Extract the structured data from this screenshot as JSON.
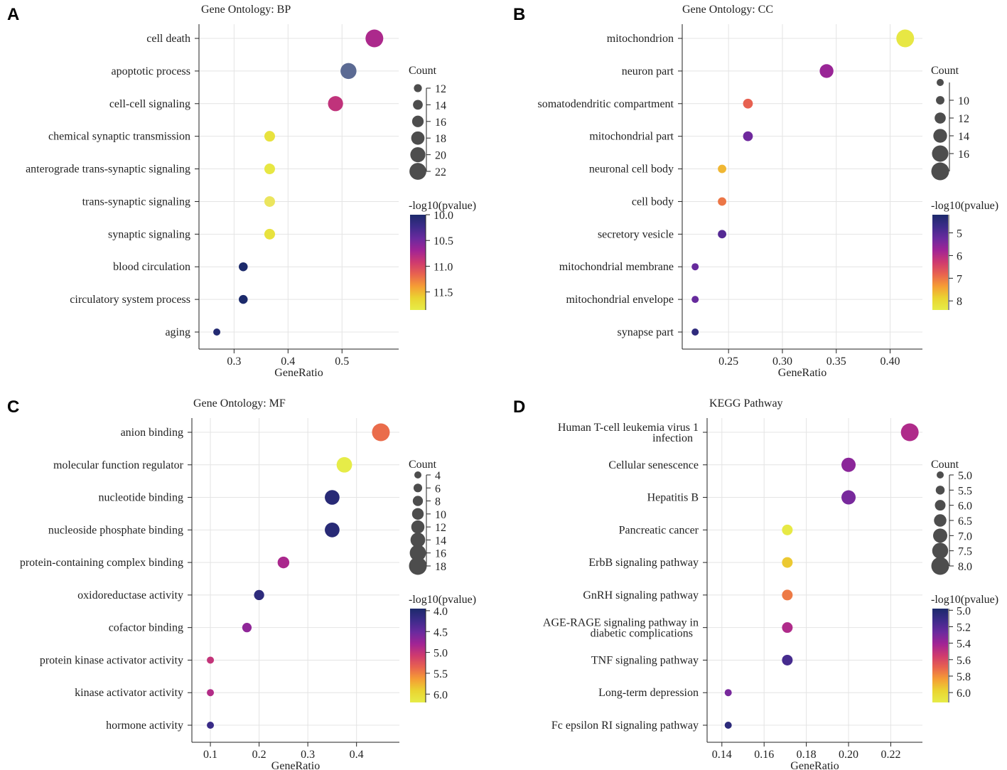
{
  "chart_data": [
    {
      "panel": "A",
      "type": "scatter",
      "title": "Gene Ontology: BP",
      "xlabel": "GeneRatio",
      "xlim": [
        0.235,
        0.605
      ],
      "xticks": [
        0.3,
        0.4,
        0.5
      ],
      "xtick_labels": [
        "0.3",
        "0.4",
        "0.5"
      ],
      "categories": [
        "cell death",
        "apoptotic process",
        "cell-cell signaling",
        "chemical synaptic transmission",
        "anterograde trans-synaptic signaling",
        "trans-synaptic signaling",
        "synaptic signaling",
        "blood circulation",
        "circulatory system process",
        "aging"
      ],
      "gene_ratio": [
        0.56,
        0.512,
        0.488,
        0.366,
        0.366,
        0.366,
        0.366,
        0.317,
        0.317,
        0.268
      ],
      "count": [
        23,
        21,
        20,
        15,
        15,
        15,
        15,
        13,
        13,
        11
      ],
      "neg_log10_pvalue": [
        10.75,
        10.2,
        10.85,
        11.75,
        11.8,
        11.7,
        11.75,
        10.0,
        10.0,
        10.05
      ],
      "size_legend": {
        "title": "Count",
        "values": [
          12,
          14,
          16,
          18,
          20,
          22
        ],
        "labels": [
          "12",
          "14",
          "16",
          "18",
          "20",
          "22"
        ]
      },
      "color_legend": {
        "title": "-log10(pvalue)",
        "min": 10.0,
        "max": 11.85,
        "ticks": [
          10.0,
          10.5,
          11.0,
          11.5
        ],
        "labels": [
          "10.0",
          "10.5",
          "11.0",
          "11.5"
        ]
      }
    },
    {
      "panel": "B",
      "type": "scatter",
      "title": "Gene Ontology: CC",
      "xlabel": "GeneRatio",
      "xlim": [
        0.207,
        0.43
      ],
      "xticks": [
        0.25,
        0.3,
        0.35,
        0.4
      ],
      "xtick_labels": [
        "0.25",
        "0.30",
        "0.35",
        "0.40"
      ],
      "categories": [
        "mitochondrion",
        "neuron part",
        "somatodendritic compartment",
        "mitochondrial part",
        "neuronal cell body",
        "cell body",
        "secretory vesicle",
        "mitochondrial membrane",
        "mitochondrial envelope",
        "synapse part"
      ],
      "gene_ratio": [
        0.414,
        0.341,
        0.268,
        0.268,
        0.244,
        0.244,
        0.244,
        0.219,
        0.219,
        0.219
      ],
      "count": [
        17,
        14,
        11,
        11,
        10,
        10,
        10,
        9,
        9,
        9
      ],
      "neg_log10_pvalue": [
        8.3,
        5.7,
        6.8,
        5.3,
        7.6,
        7.0,
        5.0,
        5.2,
        5.2,
        4.5
      ],
      "size_legend": {
        "title": "Count",
        "values": [
          9,
          10,
          12,
          14,
          16,
          17
        ],
        "labels": [
          "",
          "10",
          "12",
          "14",
          "16",
          ""
        ]
      },
      "color_legend": {
        "title": "-log10(pvalue)",
        "min": 4.2,
        "max": 8.4,
        "ticks": [
          5,
          6,
          7,
          8
        ],
        "labels": [
          "5",
          "6",
          "7",
          "8"
        ]
      }
    },
    {
      "panel": "C",
      "type": "scatter",
      "title": "Gene Ontology: MF",
      "xlabel": "GeneRatio",
      "xlim": [
        0.062,
        0.488
      ],
      "xticks": [
        0.1,
        0.2,
        0.3,
        0.4
      ],
      "xtick_labels": [
        "0.1",
        "0.2",
        "0.3",
        "0.4"
      ],
      "categories": [
        "anion binding",
        "molecular function regulator",
        "nucleotide binding",
        "nucleoside phosphate binding",
        "protein-containing complex binding",
        "oxidoreductase activity",
        "cofactor binding",
        "protein kinase activator activity",
        "kinase activator activity",
        "hormone activity"
      ],
      "gene_ratio": [
        0.45,
        0.375,
        0.35,
        0.35,
        0.25,
        0.2,
        0.175,
        0.1,
        0.1,
        0.1
      ],
      "count": [
        18,
        15,
        14,
        14,
        10,
        8,
        7,
        4,
        4,
        4
      ],
      "neg_log10_pvalue": [
        5.4,
        6.2,
        4.05,
        4.05,
        4.85,
        4.1,
        4.7,
        5.0,
        4.9,
        4.2
      ],
      "size_legend": {
        "title": "Count",
        "values": [
          4,
          6,
          8,
          10,
          12,
          14,
          16,
          18
        ],
        "labels": [
          "4",
          "6",
          "8",
          "10",
          "12",
          "14",
          "16",
          "18"
        ]
      },
      "color_legend": {
        "title": "-log10(pvalue)",
        "min": 3.95,
        "max": 6.2,
        "ticks": [
          4.0,
          4.5,
          5.0,
          5.5,
          6.0
        ],
        "labels": [
          "4.0",
          "4.5",
          "5.0",
          "5.5",
          "6.0"
        ]
      }
    },
    {
      "panel": "D",
      "type": "scatter",
      "title": "KEGG Pathway",
      "xlabel": "GeneRatio",
      "xlim": [
        0.133,
        0.235
      ],
      "xticks": [
        0.14,
        0.16,
        0.18,
        0.2,
        0.22
      ],
      "xtick_labels": [
        "0.14",
        "0.16",
        "0.18",
        "0.20",
        "0.22"
      ],
      "categories": [
        "Human T-cell leukemia virus 1 infection",
        "Cellular senescence",
        "Hepatitis B",
        "Pancreatic cancer",
        "ErbB signaling pathway",
        "GnRH signaling pathway",
        "AGE-RAGE signaling pathway in diabetic complications",
        "TNF signaling pathway",
        "Long-term depression",
        "Fc epsilon RI signaling pathway"
      ],
      "category_lines": [
        [
          "Human T-cell leukemia virus 1",
          "infection"
        ],
        [
          "Cellular senescence"
        ],
        [
          "Hepatitis B"
        ],
        [
          "Pancreatic cancer"
        ],
        [
          "ErbB signaling pathway"
        ],
        [
          "GnRH signaling pathway"
        ],
        [
          "AGE-RAGE signaling pathway in",
          "diabetic complications"
        ],
        [
          "TNF signaling pathway"
        ],
        [
          "Long-term depression"
        ],
        [
          "Fc epsilon RI signaling pathway"
        ]
      ],
      "gene_ratio": [
        0.229,
        0.2,
        0.2,
        0.171,
        0.171,
        0.171,
        0.171,
        0.171,
        0.143,
        0.143
      ],
      "count": [
        8,
        7,
        7,
        6,
        6,
        6,
        6,
        6,
        5,
        5
      ],
      "neg_log10_pvalue": [
        5.45,
        5.35,
        5.3,
        6.1,
        5.95,
        5.75,
        5.45,
        5.15,
        5.3,
        5.05
      ],
      "size_legend": {
        "title": "Count",
        "values": [
          5.0,
          5.5,
          6.0,
          6.5,
          7.0,
          7.5,
          8.0
        ],
        "labels": [
          "5.0",
          "5.5",
          "6.0",
          "6.5",
          "7.0",
          "7.5",
          "8.0"
        ]
      },
      "color_legend": {
        "title": "-log10(pvalue)",
        "min": 4.98,
        "max": 6.12,
        "ticks": [
          5.0,
          5.2,
          5.4,
          5.6,
          5.8,
          6.0
        ],
        "labels": [
          "5.0",
          "5.2",
          "5.4",
          "5.6",
          "5.8",
          "6.0"
        ]
      }
    }
  ],
  "panel_letters": [
    "A",
    "B",
    "C",
    "D"
  ],
  "palette": [
    "#1c2a6b",
    "#3d2b8a",
    "#6a2a9e",
    "#a12495",
    "#cf3a6f",
    "#e8634f",
    "#f59d35",
    "#ead431",
    "#e6ec48"
  ],
  "dot_overrides": {
    "A": {
      "1": "#5b6a93",
      "5": "#ebe55e"
    }
  }
}
